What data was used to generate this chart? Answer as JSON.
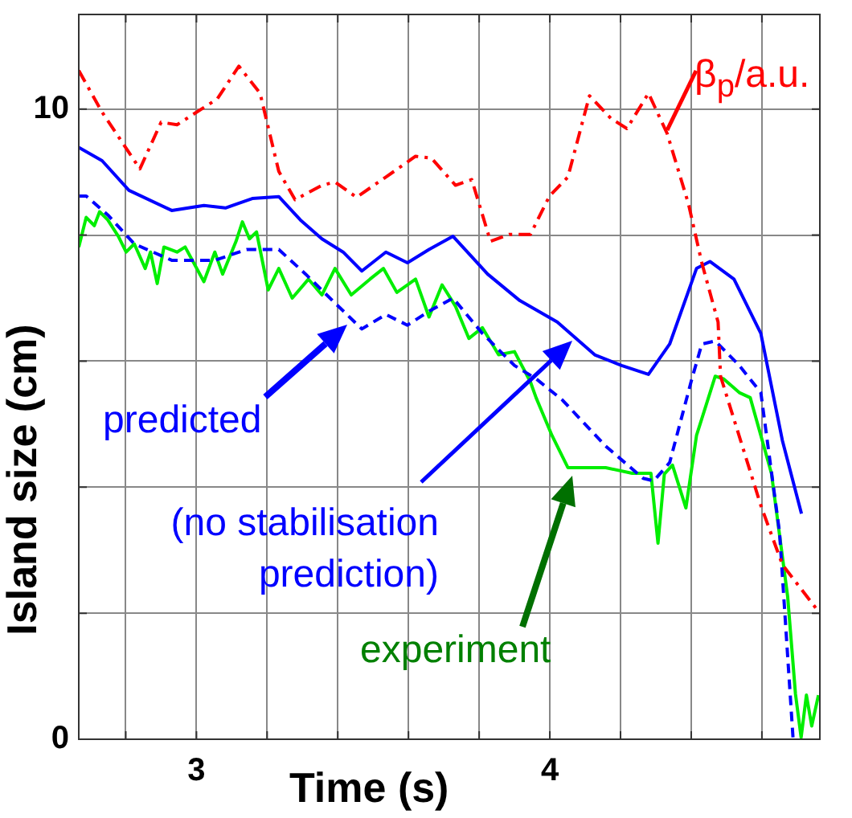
{
  "chart_data": {
    "type": "line",
    "xlabel": "Time (s)",
    "ylabel": "Island size  (cm)",
    "xlim": [
      2.667,
      4.764
    ],
    "ylim": [
      0,
      11.5
    ],
    "xticks": [
      {
        "value": 2.8,
        "label": null
      },
      3,
      {
        "value": 3.2,
        "label": null
      },
      {
        "value": 3.4,
        "label": null
      },
      {
        "value": 3.6,
        "label": null
      },
      {
        "value": 3.8,
        "label": null
      },
      4,
      {
        "value": 4.2,
        "label": null
      },
      {
        "value": 4.4,
        "label": null
      },
      {
        "value": 4.6,
        "label": null
      }
    ],
    "yticks": [
      0,
      {
        "value": 2,
        "label": null
      },
      {
        "value": 4,
        "label": null
      },
      {
        "value": 6,
        "label": null
      },
      {
        "value": 8,
        "label": null
      },
      10
    ],
    "grid": true,
    "legend": "top right",
    "marker": "none",
    "annotations": [
      "predicted",
      "(no stabilisation prediction)",
      "experiment"
    ],
    "series": [
      {
        "name": "β$_{p}$/a.u.",
        "color": "#ff0000",
        "line_style": "dashdot",
        "x": [
          2.667,
          2.733,
          2.84,
          2.9,
          2.945,
          3.059,
          3.12,
          3.18,
          3.233,
          3.279,
          3.355,
          3.392,
          3.453,
          3.536,
          3.62,
          3.665,
          3.733,
          3.779,
          3.832,
          3.885,
          3.945,
          3.999,
          4.051,
          4.112,
          4.173,
          4.218,
          4.279,
          4.332,
          4.392,
          4.43,
          4.476,
          4.483,
          4.597,
          4.658,
          4.764
        ],
        "values": [
          10.61,
          9.95,
          9.05,
          9.79,
          9.75,
          10.16,
          10.68,
          10.25,
          9.01,
          8.56,
          8.79,
          8.84,
          8.6,
          8.92,
          9.25,
          9.22,
          8.79,
          8.88,
          7.9,
          8.01,
          8.01,
          8.62,
          8.92,
          10.21,
          9.85,
          9.69,
          10.25,
          9.61,
          8.5,
          7.56,
          6.62,
          5.76,
          3.71,
          2.77,
          2.0
        ]
      },
      {
        "color": "#0000ff",
        "line_style": "solid",
        "x": [
          2.667,
          2.733,
          2.809,
          2.93,
          3.021,
          3.082,
          3.158,
          3.233,
          3.294,
          3.355,
          3.415,
          3.468,
          3.536,
          3.597,
          3.658,
          3.726,
          3.824,
          3.915,
          4.021,
          4.127,
          4.203,
          4.279,
          4.339,
          4.415,
          4.453,
          4.521,
          4.597,
          4.658,
          4.712
        ],
        "values": [
          9.39,
          9.18,
          8.71,
          8.39,
          8.47,
          8.43,
          8.58,
          8.61,
          8.24,
          7.94,
          7.73,
          7.43,
          7.73,
          7.56,
          7.77,
          7.98,
          7.38,
          6.96,
          6.62,
          6.1,
          5.93,
          5.79,
          6.27,
          7.47,
          7.58,
          7.3,
          6.44,
          4.74,
          3.58
        ]
      },
      {
        "color": "#0000ff",
        "line_style": "dashed",
        "x": [
          2.667,
          2.688,
          2.749,
          2.824,
          2.93,
          3.052,
          3.142,
          3.233,
          3.309,
          3.385,
          3.468,
          3.536,
          3.597,
          3.658,
          3.726,
          3.809,
          3.9,
          3.961,
          4.036,
          4.158,
          4.264,
          4.294,
          4.339,
          4.4,
          4.43,
          4.468,
          4.536,
          4.597,
          4.65,
          4.688
        ],
        "values": [
          8.62,
          8.62,
          8.32,
          7.86,
          7.6,
          7.6,
          7.77,
          7.77,
          7.38,
          6.96,
          6.51,
          6.74,
          6.57,
          6.79,
          7.0,
          6.44,
          5.93,
          5.72,
          5.38,
          4.65,
          4.14,
          4.1,
          4.39,
          5.68,
          6.27,
          6.32,
          5.93,
          5.5,
          3.28,
          0.03
        ]
      },
      {
        "color": "#00ee00",
        "line_style": "solid",
        "x": [
          2.667,
          2.688,
          2.711,
          2.726,
          2.749,
          2.779,
          2.801,
          2.824,
          2.855,
          2.87,
          2.889,
          2.908,
          2.945,
          2.968,
          3.021,
          3.052,
          3.074,
          3.112,
          3.13,
          3.15,
          3.17,
          3.203,
          3.233,
          3.271,
          3.317,
          3.355,
          3.392,
          3.438,
          3.491,
          3.529,
          3.567,
          3.62,
          3.658,
          3.695,
          3.733,
          3.771,
          3.809,
          3.855,
          3.9,
          3.945,
          3.961,
          4.006,
          4.051,
          4.158,
          4.233,
          4.286,
          4.306,
          4.324,
          4.347,
          4.385,
          4.415,
          4.468,
          4.491,
          4.536,
          4.567,
          4.627,
          4.673,
          4.695,
          4.711,
          4.726,
          4.741,
          4.76
        ],
        "values": [
          7.81,
          8.28,
          8.15,
          8.37,
          8.24,
          7.98,
          7.73,
          7.86,
          7.47,
          7.73,
          7.23,
          7.81,
          7.73,
          7.81,
          7.26,
          7.73,
          7.38,
          7.9,
          8.21,
          7.94,
          8.05,
          7.13,
          7.47,
          7.0,
          7.3,
          7.05,
          7.47,
          7.05,
          7.3,
          7.47,
          7.09,
          7.3,
          6.7,
          7.21,
          6.87,
          6.36,
          6.53,
          6.1,
          6.15,
          5.67,
          5.42,
          4.82,
          4.31,
          4.31,
          4.22,
          4.22,
          3.11,
          4.21,
          4.35,
          3.67,
          4.82,
          5.76,
          5.72,
          5.5,
          5.42,
          4.22,
          2.26,
          0.72,
          0.03,
          0.7,
          0.21,
          0.7
        ]
      }
    ]
  }
}
